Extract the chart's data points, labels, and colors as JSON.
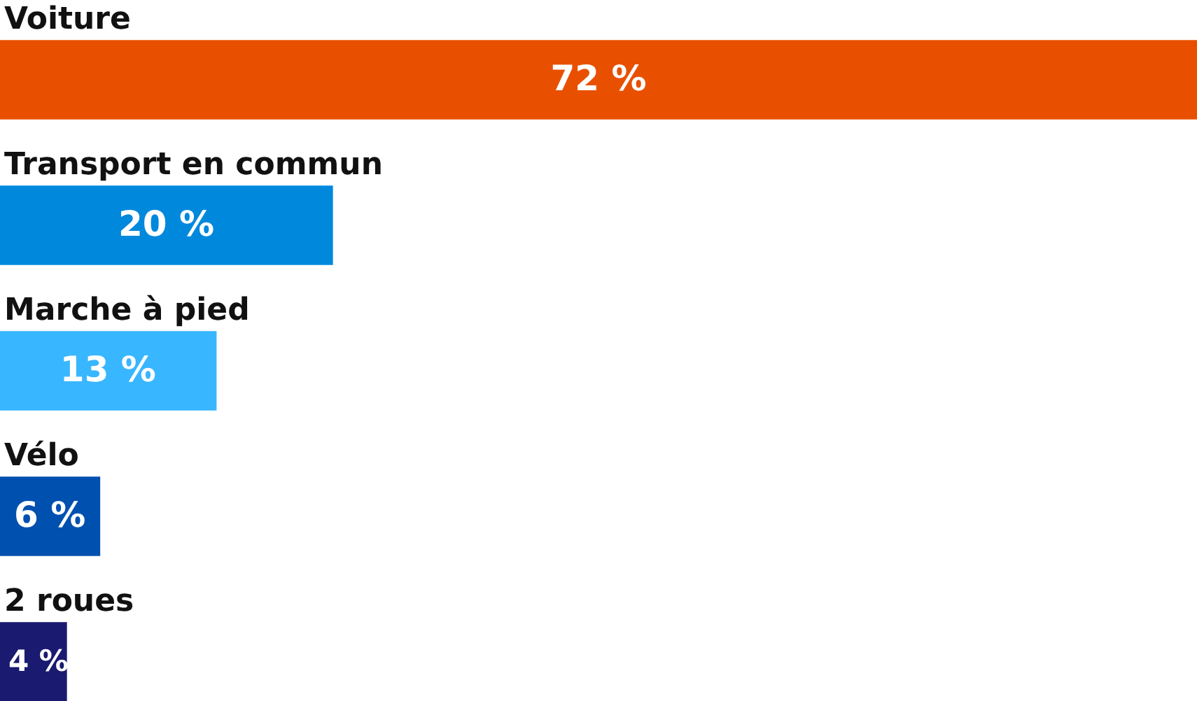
{
  "chart_data": {
    "type": "bar",
    "orientation": "horizontal",
    "categories": [
      "Voiture",
      "Transport en commun",
      "Marche à pied",
      "Vélo",
      "2 roues"
    ],
    "values": [
      72,
      20,
      13,
      6,
      4
    ],
    "colors": [
      "#e85000",
      "#0088dd",
      "#38b6ff",
      "#0050b0",
      "#1a1a70"
    ],
    "value_labels": [
      "72 %",
      "20 %",
      "13 %",
      "6 %",
      "4 %"
    ],
    "xlim": [
      0,
      72
    ],
    "tick_labels": "y"
  }
}
